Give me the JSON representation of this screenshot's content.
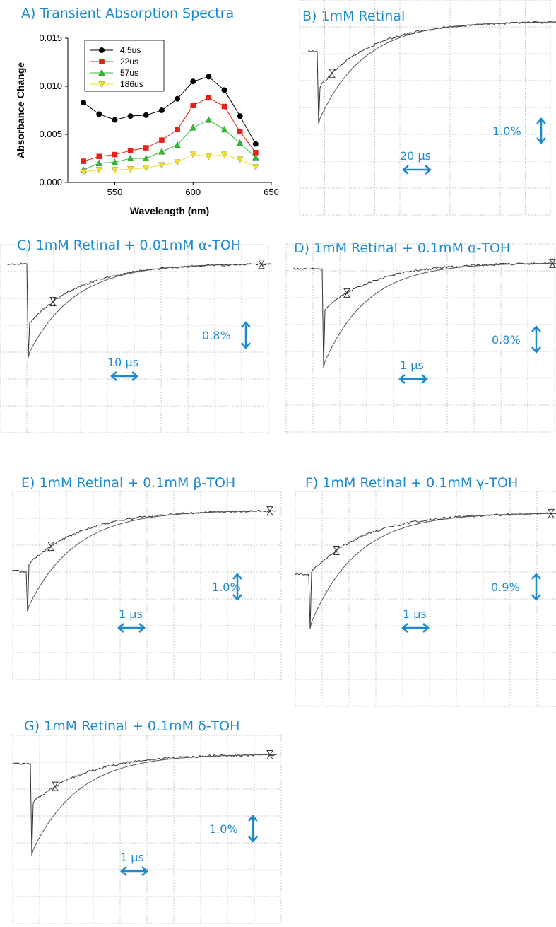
{
  "panel_titles": {
    "A": "A) Transient Absorption Spectra",
    "B": "B) 1mM Retinal",
    "C": "C) 1mM Retinal + 0.01mM α-TOH",
    "D": "D) 1mM Retinal + 0.1mM α-TOH",
    "E": "E) 1mM Retinal + 0.1mM β-TOH",
    "F": "F) 1mM Retinal + 0.1mM γ-TOH",
    "G": "G) 1mM Retinal + 0.1mM δ-TOH"
  },
  "chart_data": [
    {
      "panel": "A",
      "type": "line",
      "title": "Transient Absorption Spectra",
      "xlabel": "Wavelength (nm)",
      "ylabel": "Absorbance Change",
      "xlim": [
        520,
        650
      ],
      "ylim": [
        0,
        0.015
      ],
      "xticks": [
        "550",
        "600",
        "650"
      ],
      "yticks": [
        "0.000",
        "0.005",
        "0.010",
        "0.015"
      ],
      "legend_position": "top-left",
      "x": [
        530,
        540,
        550,
        560,
        570,
        580,
        590,
        600,
        610,
        620,
        630,
        640
      ],
      "series": [
        {
          "name": "4.5us",
          "color": "#000000",
          "marker": "circle",
          "values": [
            0.0083,
            0.0071,
            0.0065,
            0.0069,
            0.007,
            0.0075,
            0.0087,
            0.0105,
            0.011,
            0.0096,
            0.0069,
            0.004
          ]
        },
        {
          "name": "22us",
          "color": "#e8201c",
          "marker": "square",
          "values": [
            0.0022,
            0.0027,
            0.0029,
            0.0033,
            0.0036,
            0.0044,
            0.0055,
            0.008,
            0.0088,
            0.0079,
            0.0053,
            0.0031
          ]
        },
        {
          "name": "57us",
          "color": "#27c22a",
          "marker": "triangle-up",
          "values": [
            0.0013,
            0.002,
            0.0021,
            0.0025,
            0.0025,
            0.0032,
            0.0039,
            0.0057,
            0.0065,
            0.0055,
            0.0041,
            0.0026
          ]
        },
        {
          "name": "186us",
          "color": "#f2e21a",
          "marker": "triangle-down",
          "values": [
            0.0011,
            0.0013,
            0.0013,
            0.0014,
            0.0015,
            0.0018,
            0.0021,
            0.0029,
            0.0027,
            0.0029,
            0.0024,
            0.0016
          ]
        }
      ]
    },
    {
      "panel": "B",
      "type": "line",
      "amplitude_label": "1.0%",
      "time_label": "20 µs",
      "notes_unitless": {
        "baseline": 0.06,
        "drop_min": 0.58,
        "fit_min": 0.42,
        "recovery_end": 0.1
      }
    },
    {
      "panel": "C",
      "type": "line",
      "amplitude_label": "0.8%",
      "time_label": "10 µs",
      "notes_unitless": {
        "baseline": 0.05,
        "drop_min": 0.6,
        "fit_min": 0.43,
        "recovery_end": 0.1
      }
    },
    {
      "panel": "D",
      "type": "line",
      "amplitude_label": "0.8%",
      "time_label": "1 µs",
      "notes_unitless": {
        "baseline": 0.05,
        "drop_min": 0.66,
        "fit_min": 0.36,
        "recovery_end": 0.1
      }
    },
    {
      "panel": "E",
      "type": "line",
      "amplitude_label": "1.0%",
      "time_label": "1 µs",
      "notes_unitless": {
        "baseline": 0.05,
        "drop_min": 0.64,
        "fit_min": 0.4,
        "recovery_end": 0.1
      }
    },
    {
      "panel": "F",
      "type": "line",
      "amplitude_label": "0.9%",
      "time_label": "1 µs",
      "notes_unitless": {
        "baseline": 0.05,
        "drop_min": 0.64,
        "fit_min": 0.39,
        "recovery_end": 0.1
      }
    },
    {
      "panel": "G",
      "type": "line",
      "amplitude_label": "1.0%",
      "time_label": "1 µs",
      "notes_unitless": {
        "baseline": 0.05,
        "drop_min": 0.64,
        "fit_min": 0.37,
        "recovery_end": 0.1
      }
    }
  ],
  "colors": {
    "label_blue": "#1b8ad0",
    "grid": "#c8c8c8",
    "trace": "#333333"
  }
}
